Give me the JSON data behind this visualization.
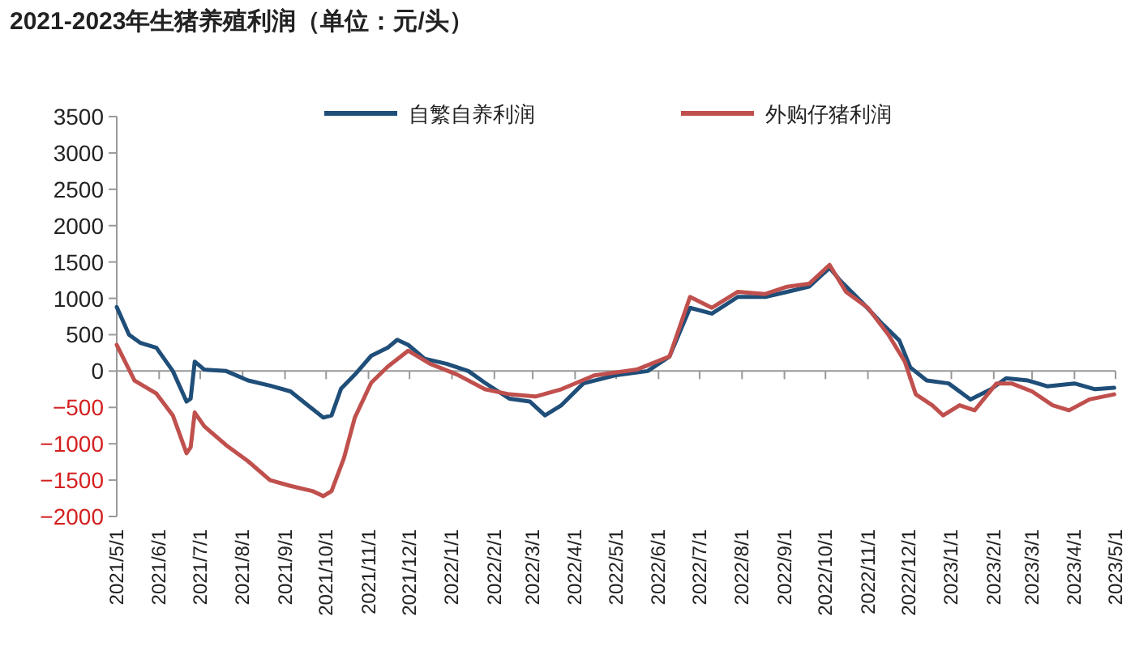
{
  "chart_data": {
    "type": "line",
    "title": "2021-2023年生猪养殖利润（单位：元/头）",
    "series": [
      {
        "name": "自繁自养利润",
        "color": "#1f4e79",
        "x": [
          "2021-05-01",
          "2021-05-10",
          "2021-05-18",
          "2021-05-30",
          "2021-06-11",
          "2021-06-21",
          "2021-06-24",
          "2021-06-27",
          "2021-07-04",
          "2021-07-20",
          "2021-08-05",
          "2021-08-21",
          "2021-09-05",
          "2021-09-17",
          "2021-09-29",
          "2021-10-05",
          "2021-10-12",
          "2021-10-22",
          "2021-11-03",
          "2021-11-15",
          "2021-11-22",
          "2021-11-30",
          "2021-12-12",
          "2021-12-28",
          "2022-01-13",
          "2022-01-25",
          "2022-02-12",
          "2022-02-27",
          "2022-03-10",
          "2022-03-22",
          "2022-04-07",
          "2022-04-30",
          "2022-05-24",
          "2022-06-09",
          "2022-06-24",
          "2022-07-10",
          "2022-07-29",
          "2022-08-18",
          "2022-09-03",
          "2022-09-19",
          "2022-10-04",
          "2022-10-12",
          "2022-10-28",
          "2022-11-12",
          "2022-11-24",
          "2022-12-02",
          "2022-12-14",
          "2022-12-30",
          "2023-01-15",
          "2023-01-30",
          "2023-02-10",
          "2023-02-26",
          "2023-03-12",
          "2023-04-01",
          "2023-04-16",
          "2023-04-30"
        ],
        "values": [
          880,
          500,
          390,
          320,
          0,
          -420,
          -380,
          130,
          20,
          0,
          -130,
          -200,
          -280,
          -460,
          -640,
          -610,
          -240,
          -50,
          210,
          320,
          430,
          360,
          170,
          100,
          0,
          -160,
          -380,
          -420,
          -610,
          -470,
          -170,
          -60,
          0,
          200,
          870,
          790,
          1020,
          1020,
          1090,
          1160,
          1420,
          1240,
          940,
          640,
          420,
          50,
          -130,
          -170,
          -390,
          -250,
          -100,
          -130,
          -210,
          -170,
          -250,
          -230
        ]
      },
      {
        "name": "外购仔猪利润",
        "color": "#c0504d",
        "x": [
          "2021-05-01",
          "2021-05-14",
          "2021-05-30",
          "2021-06-11",
          "2021-06-21",
          "2021-06-24",
          "2021-06-27",
          "2021-07-04",
          "2021-07-20",
          "2021-08-05",
          "2021-08-21",
          "2021-09-05",
          "2021-09-21",
          "2021-09-29",
          "2021-10-05",
          "2021-10-14",
          "2021-10-22",
          "2021-11-03",
          "2021-11-15",
          "2021-11-30",
          "2021-12-16",
          "2022-01-05",
          "2022-01-25",
          "2022-02-12",
          "2022-03-03",
          "2022-03-22",
          "2022-04-15",
          "2022-05-16",
          "2022-06-09",
          "2022-06-24",
          "2022-07-10",
          "2022-07-29",
          "2022-08-18",
          "2022-09-03",
          "2022-09-19",
          "2022-10-04",
          "2022-10-16",
          "2022-11-01",
          "2022-11-16",
          "2022-11-28",
          "2022-12-06",
          "2022-12-18",
          "2022-12-26",
          "2023-01-07",
          "2023-01-18",
          "2023-02-03",
          "2023-02-14",
          "2023-03-01",
          "2023-03-16",
          "2023-03-28",
          "2023-04-12",
          "2023-04-30"
        ],
        "values": [
          360,
          -130,
          -310,
          -610,
          -1130,
          -1050,
          -570,
          -760,
          -1020,
          -1240,
          -1500,
          -1580,
          -1650,
          -1720,
          -1650,
          -1200,
          -640,
          -160,
          60,
          280,
          100,
          -50,
          -250,
          -320,
          -350,
          -250,
          -60,
          20,
          200,
          1020,
          870,
          1090,
          1060,
          1160,
          1200,
          1460,
          1090,
          870,
          500,
          130,
          -320,
          -470,
          -610,
          -470,
          -540,
          -170,
          -170,
          -280,
          -470,
          -540,
          -390,
          -320
        ]
      }
    ],
    "xlim": [
      "2021-05-01",
      "2023-05-01"
    ],
    "xticks": [
      {
        "value": "2021-05-01",
        "label": "2021/5/1"
      },
      {
        "value": "2021-06-01",
        "label": "2021/6/1"
      },
      {
        "value": "2021-07-01",
        "label": "2021/7/1"
      },
      {
        "value": "2021-08-01",
        "label": "2021/8/1"
      },
      {
        "value": "2021-09-01",
        "label": "2021/9/1"
      },
      {
        "value": "2021-10-01",
        "label": "2021/10/1"
      },
      {
        "value": "2021-11-01",
        "label": "2021/11/1"
      },
      {
        "value": "2021-12-01",
        "label": "2021/12/1"
      },
      {
        "value": "2022-01-01",
        "label": "2022/1/1"
      },
      {
        "value": "2022-02-01",
        "label": "2022/2/1"
      },
      {
        "value": "2022-03-01",
        "label": "2022/3/1"
      },
      {
        "value": "2022-04-01",
        "label": "2022/4/1"
      },
      {
        "value": "2022-05-01",
        "label": "2022/5/1"
      },
      {
        "value": "2022-06-01",
        "label": "2022/6/1"
      },
      {
        "value": "2022-07-01",
        "label": "2022/7/1"
      },
      {
        "value": "2022-08-01",
        "label": "2022/8/1"
      },
      {
        "value": "2022-09-01",
        "label": "2022/9/1"
      },
      {
        "value": "2022-10-01",
        "label": "2022/10/1"
      },
      {
        "value": "2022-11-01",
        "label": "2022/11/1"
      },
      {
        "value": "2022-12-01",
        "label": "2022/12/1"
      },
      {
        "value": "2023-01-01",
        "label": "2023/1/1"
      },
      {
        "value": "2023-02-01",
        "label": "2023/2/1"
      },
      {
        "value": "2023-03-01",
        "label": "2023/3/1"
      },
      {
        "value": "2023-04-01",
        "label": "2023/4/1"
      },
      {
        "value": "2023-05-01",
        "label": "2023/5/1"
      }
    ],
    "ylim": [
      -2000,
      3500
    ],
    "yticks": [
      {
        "value": -2000,
        "label": "−2000"
      },
      {
        "value": -1500,
        "label": "−1500"
      },
      {
        "value": -1000,
        "label": "−1000"
      },
      {
        "value": -500,
        "label": "−500"
      },
      0,
      500,
      1000,
      1500,
      2000,
      2500,
      3000,
      3500
    ],
    "legend": "top",
    "marker": "none",
    "line_style": "solid"
  }
}
